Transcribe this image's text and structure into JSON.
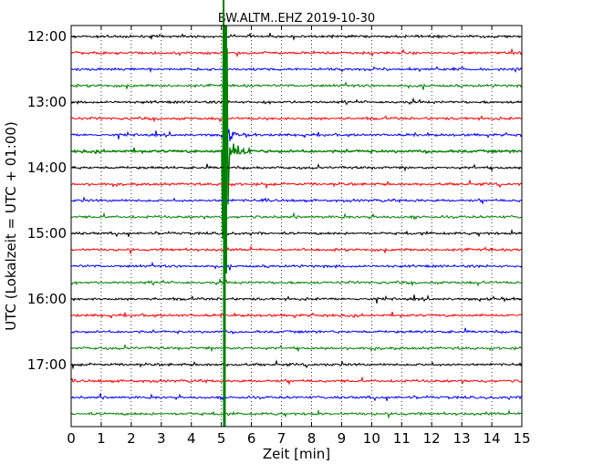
{
  "chart_data": {
    "type": "line",
    "title": "BW.ALTM..EHZ 2019-10-30",
    "xlabel": "Zeit  [min]",
    "ylabel": "UTC (Lokalzeit = UTC + 01:00)",
    "xlim": [
      0,
      15
    ],
    "x_ticks": [
      "0",
      "1",
      "2",
      "3",
      "4",
      "5",
      "6",
      "7",
      "8",
      "9",
      "10",
      "11",
      "12",
      "13",
      "14",
      "15"
    ],
    "y_ticks": [
      "12:00",
      "13:00",
      "14:00",
      "15:00",
      "16:00",
      "17:00"
    ],
    "grid": true,
    "trace_colors": [
      "#000000",
      "#ff0000",
      "#0000ff",
      "#008000"
    ],
    "trace_count": 24,
    "trace_interval_min": 15,
    "start_time": "12:00",
    "event": {
      "time_min": 5.1,
      "hour_offset": "13:45",
      "color": "#008000",
      "note": "large seismic event with coda on 13:45 trace"
    }
  }
}
